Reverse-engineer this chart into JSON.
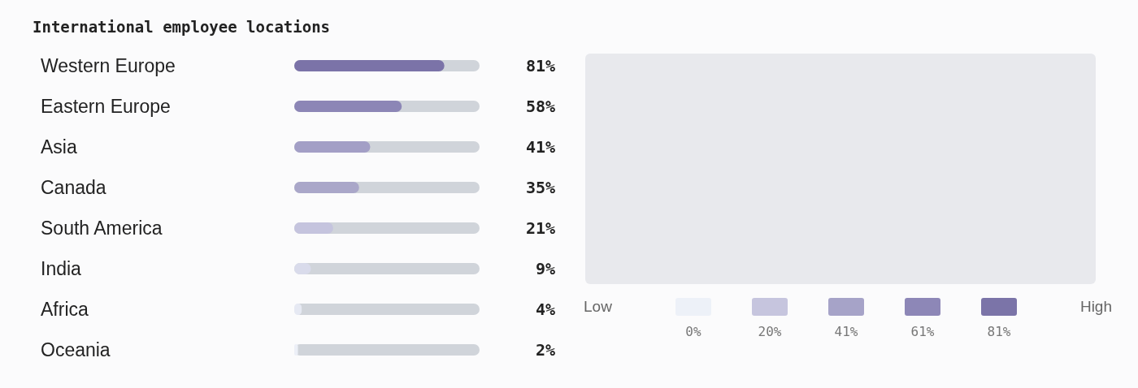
{
  "chart_data": [
    {
      "type": "bar",
      "title": "International employee locations",
      "orientation": "horizontal",
      "categories": [
        "Western Europe",
        "Eastern Europe",
        "Asia",
        "Canada",
        "South America",
        "India",
        "Africa",
        "Oceania"
      ],
      "values": [
        81,
        58,
        41,
        35,
        21,
        9,
        4,
        2
      ],
      "colors": [
        "#7b73a8",
        "#8c86b6",
        "#a39fc6",
        "#aaa7c9",
        "#c5c4de",
        "#d9dbeb",
        "#e6e9f3",
        "#eceff7"
      ],
      "value_labels": [
        "81%",
        "58%",
        "41%",
        "35%",
        "21%",
        "9%",
        "4%",
        "2%"
      ],
      "xlim": [
        0,
        100
      ],
      "tick_labels": "y"
    },
    {
      "type": "other",
      "categories": [
        "0%",
        "20%",
        "41%",
        "61%",
        "81%"
      ],
      "colors": [
        "#edf1f8",
        "#c6c5de",
        "#a6a3c8",
        "#8d87b7",
        "#7b74a8"
      ],
      "annotations": [
        "Low",
        "High"
      ]
    }
  ]
}
